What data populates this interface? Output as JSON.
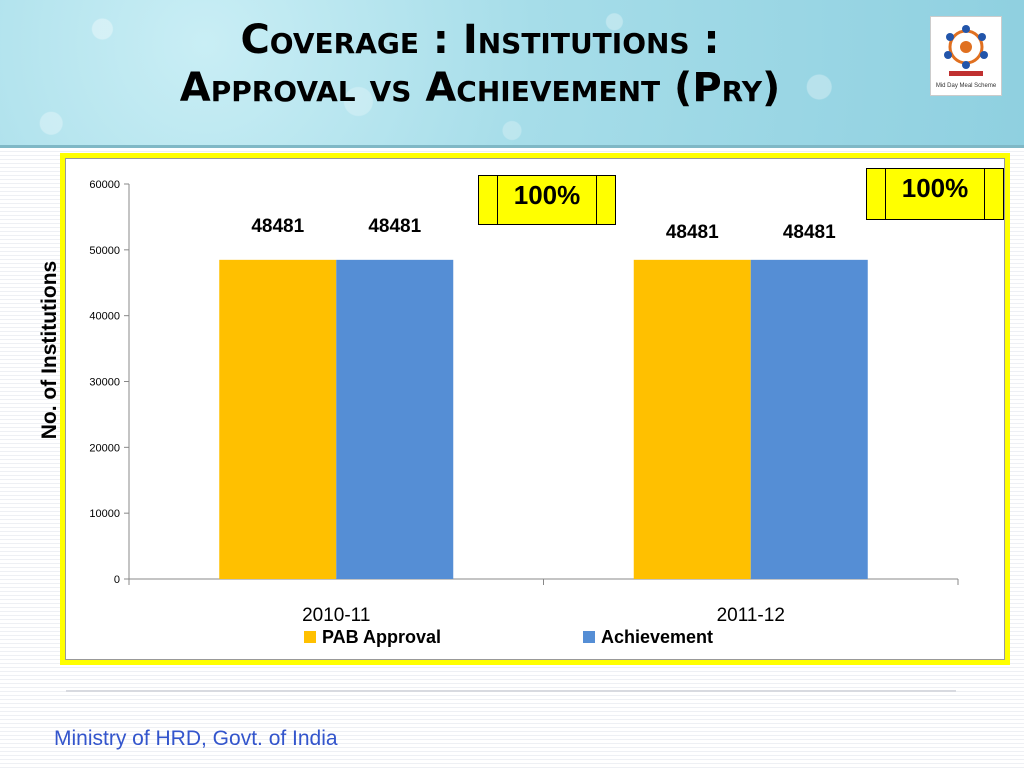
{
  "slide": {
    "title_line1": "Coverage : Institutions :",
    "title_line2": "Approval vs Achievement (Pry)",
    "side_label": "No. of Institutions",
    "footer": "Ministry of HRD, Govt. of India",
    "logo_caption": "Mid Day Meal Scheme"
  },
  "percent_boxes": [
    "100%",
    "100%"
  ],
  "colors": {
    "pab_approval": "#ffc000",
    "achievement": "#558ed5",
    "frame": "#ffff00"
  },
  "chart_data": {
    "type": "bar",
    "categories": [
      "2010-11",
      "2011-12"
    ],
    "series": [
      {
        "name": "PAB Approval",
        "values": [
          48481,
          48481
        ]
      },
      {
        "name": "Achievement",
        "values": [
          48481,
          48481
        ]
      }
    ],
    "data_labels": [
      [
        "48481",
        "48481"
      ],
      [
        "48481",
        "48481"
      ]
    ],
    "ylim": [
      0,
      60000
    ],
    "yticks": [
      0,
      10000,
      20000,
      30000,
      40000,
      50000,
      60000
    ],
    "ylabel": "No. of Institutions",
    "legend": "bottom",
    "grid": false
  }
}
